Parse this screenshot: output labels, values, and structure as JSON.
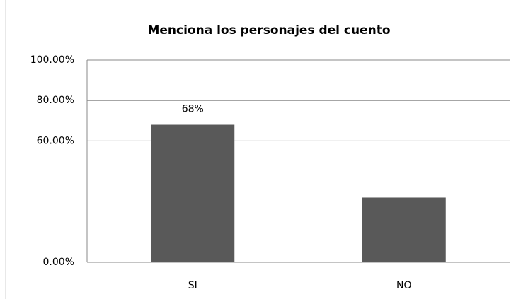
{
  "chart_data": {
    "type": "bar",
    "title": "Menciona los personajes del cuento",
    "categories": [
      "SI",
      "NO"
    ],
    "values": [
      68,
      32
    ],
    "value_labels": [
      "68%",
      null
    ],
    "color": "#595959",
    "ylim": [
      0,
      100
    ],
    "yticks": [
      {
        "value": 0,
        "label": "0.00%"
      },
      {
        "value": 60,
        "label": "60.00%"
      },
      {
        "value": 80,
        "label": "80.00%"
      },
      {
        "value": 100,
        "label": "100.00%"
      }
    ],
    "grid": true
  }
}
